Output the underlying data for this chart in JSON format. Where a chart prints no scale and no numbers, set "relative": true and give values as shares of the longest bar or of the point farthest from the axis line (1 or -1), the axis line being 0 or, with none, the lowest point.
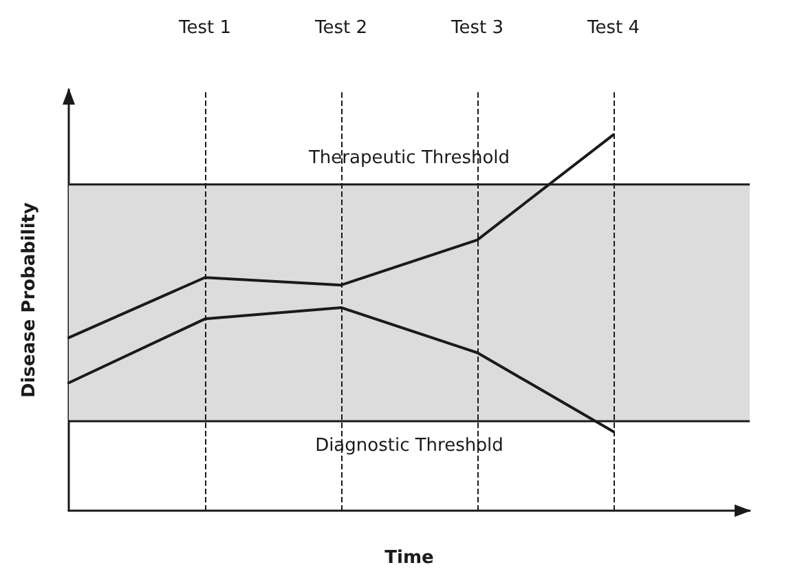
{
  "chart_data": {
    "type": "line",
    "relative": true,
    "xlabel": "Time",
    "ylabel": "Disease Probability",
    "categories": [
      null,
      "Test 1",
      "Test 2",
      "Test 3",
      "Test 4"
    ],
    "series": [
      {
        "color": "#1a1a1a",
        "values": [
          0.46,
          0.62,
          0.6,
          0.72,
          1.0
        ]
      },
      {
        "color": "#1a1a1a",
        "values": [
          0.34,
          0.51,
          0.54,
          0.42,
          0.21
        ]
      }
    ],
    "marker": "none",
    "line_style": "solid",
    "grid": false,
    "bands": [
      {
        "axis": "y",
        "from": 0.24,
        "to": 0.87,
        "color": "#dcdcdc"
      }
    ],
    "ref_lines": [
      {
        "axis": "y",
        "value": 0.87,
        "label": "Therapeutic Threshold",
        "color": "#1a1a1a",
        "line_style": "solid"
      },
      {
        "axis": "y",
        "value": 0.24,
        "label": "Diagnostic Threshold",
        "color": "#1a1a1a",
        "line_style": "solid"
      },
      {
        "axis": "x",
        "value": "Test 1",
        "color": "#1a1a1a",
        "line_style": "dashed"
      },
      {
        "axis": "x",
        "value": "Test 2",
        "color": "#1a1a1a",
        "line_style": "dashed"
      },
      {
        "axis": "x",
        "value": "Test 3",
        "color": "#1a1a1a",
        "line_style": "dashed"
      },
      {
        "axis": "x",
        "value": "Test 4",
        "color": "#1a1a1a",
        "line_style": "dashed"
      }
    ]
  }
}
